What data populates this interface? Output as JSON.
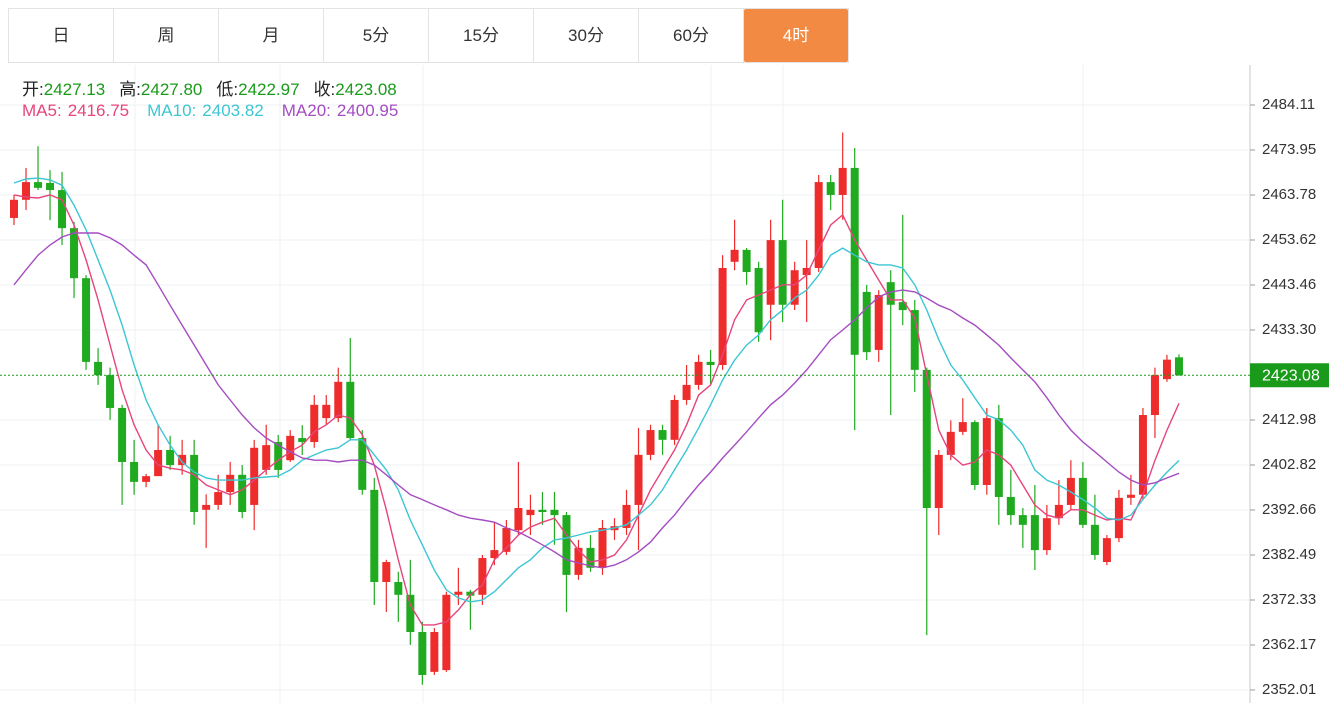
{
  "tabs": {
    "items": [
      "日",
      "周",
      "月",
      "5分",
      "15分",
      "30分",
      "60分",
      "4时"
    ],
    "active": "4时"
  },
  "chart_data": {
    "type": "candlestick",
    "up_color": "#ee2c2c",
    "down_color": "#1faa1f",
    "quote_color": "#1a9a1a",
    "quote": [
      {
        "name": "开:",
        "value_label": "2427.13"
      },
      {
        "name": "高:",
        "value_label": "2427.80"
      },
      {
        "name": "低:",
        "value_label": "2422.97"
      },
      {
        "name": "收:",
        "value_label": "2423.08"
      }
    ],
    "ylim": [
      2349.07,
      2493.14
    ],
    "yticks": [
      2484.11,
      2473.95,
      2463.78,
      2453.62,
      2443.46,
      {
        "value": 2433.3,
        "label": "2433.30"
      },
      2412.98,
      2402.82,
      2392.66,
      2382.49,
      2372.33,
      2362.17,
      2352.01
    ],
    "grid": true,
    "open": [
      2458.6,
      2462.7,
      2466.7,
      2466.5,
      2464.9,
      2456.3,
      2445.0,
      2426.1,
      2423.1,
      2415.7,
      2403.5,
      2399.0,
      2400.3,
      2406.2,
      2402.8,
      2405.1,
      2392.7,
      2393.8,
      2396.7,
      2400.6,
      2393.8,
      2401.7,
      2408.0,
      2403.9,
      2408.9,
      2408.0,
      2413.4,
      2413.4,
      2421.6,
      2408.9,
      2397.2,
      2376.4,
      2376.4,
      2373.5,
      2365.1,
      2356.1,
      2356.5,
      2373.5,
      2374.2,
      2373.5,
      2381.8,
      2383.2,
      2388.1,
      2391.5,
      2392.7,
      2392.7,
      2391.5,
      2378.0,
      2384.1,
      2379.6,
      2388.1,
      2388.6,
      2393.8,
      2405.1,
      2410.7,
      2408.5,
      2417.5,
      2420.9,
      2426.1,
      2425.4,
      2448.7,
      2451.4,
      2447.3,
      2439.0,
      2453.6,
      2439.0,
      2445.7,
      2447.3,
      2466.7,
      2463.8,
      2469.9,
      2441.9,
      2428.8,
      2444.1,
      2439.6,
      2437.8,
      2424.3,
      2393.1,
      2405.1,
      2410.3,
      2412.5,
      2398.3,
      2413.4,
      2395.6,
      2391.5,
      2391.5,
      2383.6,
      2390.8,
      2393.8,
      2399.9,
      2389.3,
      2380.9,
      2386.3,
      2395.4,
      2396.1,
      2414.1,
      2422.2,
      2427.13
    ],
    "high": [
      2463.8,
      2469.9,
      2474.8,
      2469.4,
      2469.0,
      2457.7,
      2445.7,
      2429.2,
      2424.8,
      2416.4,
      2408.5,
      2400.8,
      2411.9,
      2409.4,
      2408.5,
      2408.5,
      2396.2,
      2400.6,
      2403.5,
      2402.8,
      2408.5,
      2411.9,
      2409.6,
      2410.7,
      2411.8,
      2418.6,
      2418.6,
      2424.8,
      2431.5,
      2410.7,
      2399.9,
      2381.4,
      2378.7,
      2381.4,
      2367.4,
      2366.0,
      2374.2,
      2379.6,
      2374.6,
      2382.5,
      2390.0,
      2390.4,
      2403.5,
      2396.1,
      2396.7,
      2396.7,
      2392.2,
      2385.9,
      2387.0,
      2390.4,
      2390.8,
      2397.2,
      2411.2,
      2411.9,
      2411.9,
      2418.6,
      2425.4,
      2427.7,
      2428.8,
      2450.2,
      2458.2,
      2451.8,
      2448.7,
      2458.2,
      2462.7,
      2448.7,
      2453.6,
      2468.3,
      2468.3,
      2477.9,
      2474.4,
      2443.5,
      2442.3,
      2446.8,
      2459.3,
      2440.1,
      2424.8,
      2406.2,
      2412.9,
      2417.9,
      2412.9,
      2415.7,
      2416.4,
      2401.7,
      2393.1,
      2398.3,
      2393.8,
      2399.4,
      2403.9,
      2403.5,
      2396.1,
      2387.0,
      2397.2,
      2400.6,
      2415.7,
      2424.8,
      2427.7,
      2427.8
    ],
    "low": [
      2457.0,
      2460.4,
      2464.9,
      2458.1,
      2452.5,
      2440.5,
      2424.3,
      2420.9,
      2413.0,
      2393.8,
      2396.1,
      2397.8,
      2400.3,
      2401.7,
      2400.6,
      2389.3,
      2384.1,
      2392.7,
      2393.8,
      2390.8,
      2388.1,
      2400.6,
      2399.9,
      2403.5,
      2405.1,
      2406.7,
      2411.9,
      2412.5,
      2408.5,
      2396.1,
      2371.2,
      2369.6,
      2367.4,
      2362.2,
      2353.2,
      2355.4,
      2356.1,
      2371.2,
      2365.6,
      2371.2,
      2380.2,
      2382.5,
      2387.0,
      2387.0,
      2389.3,
      2384.8,
      2369.6,
      2376.9,
      2378.7,
      2378.0,
      2385.9,
      2387.0,
      2383.6,
      2403.9,
      2405.1,
      2407.3,
      2416.4,
      2419.8,
      2420.9,
      2424.3,
      2446.8,
      2443.5,
      2430.6,
      2431.0,
      2435.1,
      2437.8,
      2435.1,
      2446.4,
      2460.4,
      2458.2,
      2410.7,
      2426.5,
      2426.1,
      2414.1,
      2434.4,
      2419.3,
      2364.4,
      2387.0,
      2403.9,
      2409.6,
      2397.2,
      2396.1,
      2389.3,
      2389.3,
      2384.1,
      2379.1,
      2382.5,
      2389.3,
      2392.7,
      2388.6,
      2381.4,
      2380.2,
      2385.4,
      2393.8,
      2394.9,
      2408.9,
      2421.6,
      2422.97
    ],
    "close": [
      2462.7,
      2466.7,
      2465.4,
      2464.9,
      2456.3,
      2445.0,
      2426.1,
      2423.1,
      2415.7,
      2403.5,
      2399.0,
      2400.3,
      2406.2,
      2402.8,
      2405.1,
      2392.2,
      2393.8,
      2396.7,
      2400.6,
      2392.2,
      2406.7,
      2407.3,
      2401.7,
      2409.4,
      2408.0,
      2416.4,
      2416.4,
      2421.6,
      2408.9,
      2397.2,
      2376.4,
      2380.9,
      2373.5,
      2365.1,
      2355.4,
      2365.1,
      2373.5,
      2374.2,
      2373.3,
      2381.8,
      2383.6,
      2388.6,
      2393.1,
      2392.7,
      2392.2,
      2391.5,
      2378.0,
      2384.1,
      2379.6,
      2388.6,
      2389.0,
      2393.8,
      2405.1,
      2410.7,
      2408.5,
      2417.5,
      2420.9,
      2426.1,
      2425.4,
      2447.3,
      2451.4,
      2446.4,
      2432.8,
      2453.6,
      2439.0,
      2446.8,
      2447.3,
      2466.7,
      2463.8,
      2469.9,
      2427.7,
      2428.3,
      2441.2,
      2439.0,
      2437.8,
      2424.3,
      2393.1,
      2405.1,
      2410.3,
      2412.5,
      2398.3,
      2413.4,
      2395.6,
      2391.5,
      2389.3,
      2383.6,
      2390.8,
      2393.8,
      2399.9,
      2389.3,
      2382.5,
      2386.3,
      2395.4,
      2396.1,
      2414.1,
      2423.1,
      2426.6,
      2423.08
    ],
    "ma": [
      {
        "name": "MA5:",
        "color": "#e6457c",
        "value_label": "2416.75",
        "values": [
          2463.8,
          2463.3,
          2463.1,
          2463.8,
          2462.7,
          2457.0,
          2449.1,
          2440.1,
          2429.9,
          2419.8,
          2411.9,
          2406.2,
          2402.8,
          2402.1,
          2401.7,
          2400.6,
          2398.3,
          2397.2,
          2396.1,
          2397.2,
          2399.4,
          2401.7,
          2403.9,
          2405.8,
          2407.3,
          2410.3,
          2411.9,
          2414.1,
          2413.4,
          2409.6,
          2402.8,
          2392.7,
          2381.4,
          2371.2,
          2366.7,
          2366.7,
          2367.4,
          2370.1,
          2373.5,
          2375.7,
          2381.4,
          2384.1,
          2387.0,
          2388.8,
          2389.9,
          2390.8,
          2387.0,
          2383.6,
          2380.9,
          2381.4,
          2382.5,
          2385.9,
          2391.5,
          2397.2,
          2401.7,
          2406.2,
          2411.9,
          2418.6,
          2420.9,
          2427.7,
          2435.6,
          2440.1,
          2441.2,
          2442.3,
          2443.5,
          2443.5,
          2445.7,
          2451.4,
          2457.0,
          2459.3,
          2453.6,
          2449.1,
          2444.6,
          2440.1,
          2440.1,
          2436.0,
          2423.1,
          2410.7,
          2405.1,
          2402.8,
          2403.5,
          2406.2,
          2405.1,
          2402.8,
          2398.3,
          2393.8,
          2391.5,
          2390.8,
          2392.7,
          2392.7,
          2391.5,
          2390.4,
          2390.8,
          2390.4,
          2396.1,
          2403.9,
          2410.7,
          2416.75
        ]
      },
      {
        "name": "MA10:",
        "color": "#3cc6d4",
        "value_label": "2403.82",
        "values": [
          2466.5,
          2467.4,
          2467.6,
          2467.2,
          2466.0,
          2461.5,
          2455.9,
          2449.1,
          2442.3,
          2434.4,
          2425.4,
          2417.5,
          2411.9,
          2407.3,
          2403.5,
          2401.2,
          2399.9,
          2399.4,
          2399.4,
          2399.4,
          2399.9,
          2400.1,
          2400.3,
          2401.7,
          2403.9,
          2405.1,
          2406.2,
          2406.7,
          2408.5,
          2408.5,
          2405.1,
          2401.7,
          2397.2,
          2390.4,
          2384.8,
          2379.1,
          2374.6,
          2372.8,
          2371.9,
          2372.3,
          2374.2,
          2376.9,
          2379.6,
          2381.4,
          2384.1,
          2385.9,
          2386.3,
          2387.0,
          2387.7,
          2388.1,
          2388.6,
          2389.3,
          2391.5,
          2393.8,
          2397.2,
          2401.7,
          2406.2,
          2411.2,
          2416.4,
          2422.0,
          2426.5,
          2429.9,
          2432.2,
          2435.6,
          2437.8,
          2440.5,
          2442.3,
          2445.7,
          2450.2,
          2451.8,
          2450.2,
          2448.7,
          2448.0,
          2448.0,
          2447.3,
          2443.5,
          2437.8,
          2431.1,
          2425.4,
          2422.0,
          2418.0,
          2414.1,
          2413.0,
          2410.7,
          2407.3,
          2401.7,
          2399.4,
          2398.3,
          2396.7,
          2395.0,
          2393.1,
          2390.8,
          2390.4,
          2391.5,
          2395.0,
          2398.3,
          2401.2,
          2403.82
        ]
      },
      {
        "name": "MA20:",
        "color": "#a54cc2",
        "value_label": "2400.95",
        "values": [
          2443.5,
          2446.9,
          2450.2,
          2452.5,
          2454.3,
          2455.2,
          2455.2,
          2455.2,
          2454.1,
          2452.5,
          2450.2,
          2448.0,
          2443.5,
          2438.9,
          2434.4,
          2429.9,
          2425.4,
          2420.9,
          2417.5,
          2414.1,
          2411.2,
          2408.9,
          2407.3,
          2405.8,
          2404.4,
          2403.9,
          2403.9,
          2403.5,
          2403.9,
          2403.9,
          2402.8,
          2400.6,
          2398.3,
          2396.1,
          2395.0,
          2393.8,
          2392.7,
          2391.5,
          2390.8,
          2390.4,
          2389.9,
          2388.6,
          2387.7,
          2386.3,
          2384.8,
          2383.2,
          2381.4,
          2380.7,
          2380.0,
          2379.6,
          2380.2,
          2381.4,
          2383.2,
          2385.4,
          2388.6,
          2391.5,
          2395.0,
          2398.3,
          2401.2,
          2404.4,
          2407.3,
          2410.3,
          2413.4,
          2416.4,
          2418.6,
          2421.3,
          2424.3,
          2427.7,
          2431.1,
          2433.3,
          2435.6,
          2438.3,
          2440.8,
          2441.9,
          2442.3,
          2441.9,
          2440.5,
          2438.9,
          2437.8,
          2436.0,
          2434.4,
          2432.2,
          2429.9,
          2427.0,
          2424.3,
          2421.6,
          2418.0,
          2414.1,
          2410.7,
          2408.0,
          2405.8,
          2403.5,
          2401.2,
          2399.4,
          2398.3,
          2398.8,
          2399.9,
          2400.95
        ]
      }
    ]
  }
}
